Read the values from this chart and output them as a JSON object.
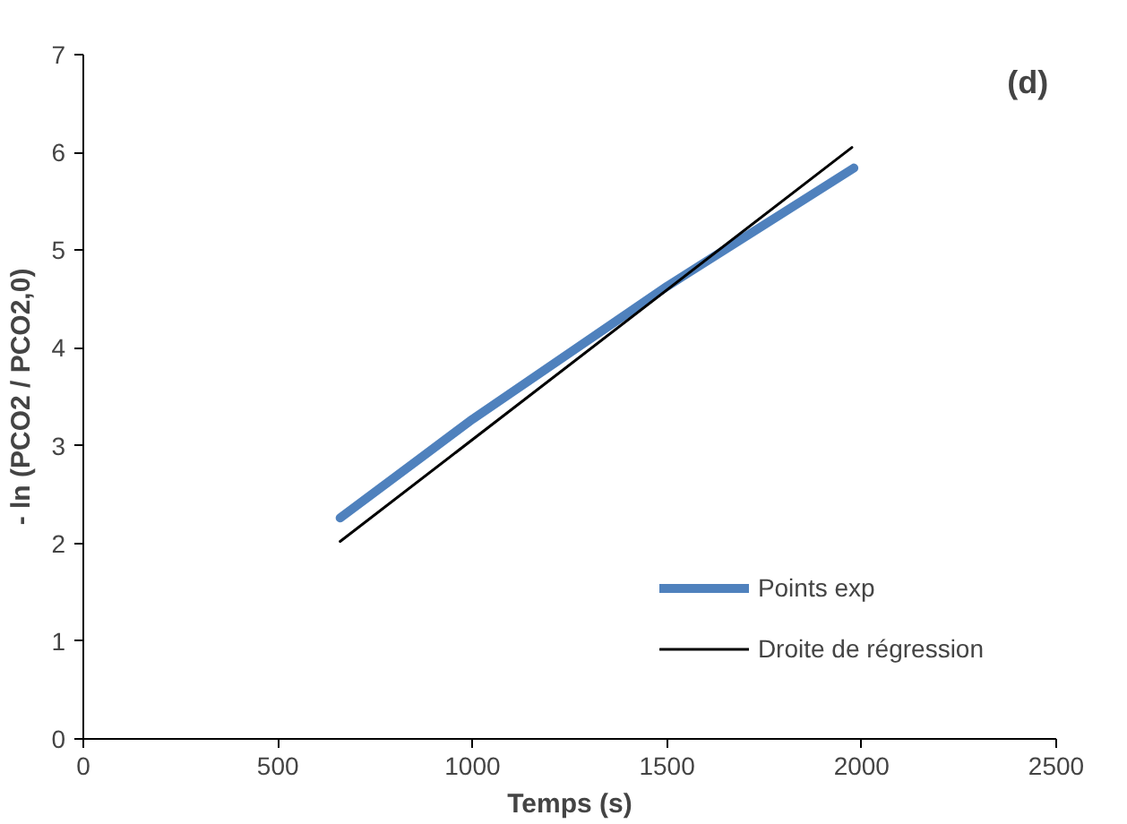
{
  "chart_data": {
    "type": "line",
    "xlabel": "Temps (s)",
    "ylabel": "- ln (PCO2 / PCO2,0)",
    "annotations": [
      "(d)"
    ],
    "series": [
      {
        "name": "Points exp",
        "color": "#4f81bd",
        "x": [
          660,
          1000,
          1500,
          1980
        ],
        "values": [
          2.26,
          3.27,
          4.63,
          5.84
        ]
      },
      {
        "name": "Droite de régression",
        "color": "#000000",
        "x": [
          660,
          1975
        ],
        "values": [
          2.02,
          6.05
        ]
      }
    ],
    "xlim": [
      0,
      2500
    ],
    "xticks": [
      0,
      500,
      1000,
      1500,
      2000,
      2500
    ],
    "ylim": [
      0,
      7
    ],
    "yticks": [
      0,
      1,
      2,
      3,
      4,
      5,
      6,
      7
    ],
    "grid": false,
    "legend": "bottom right",
    "marker": "none"
  }
}
